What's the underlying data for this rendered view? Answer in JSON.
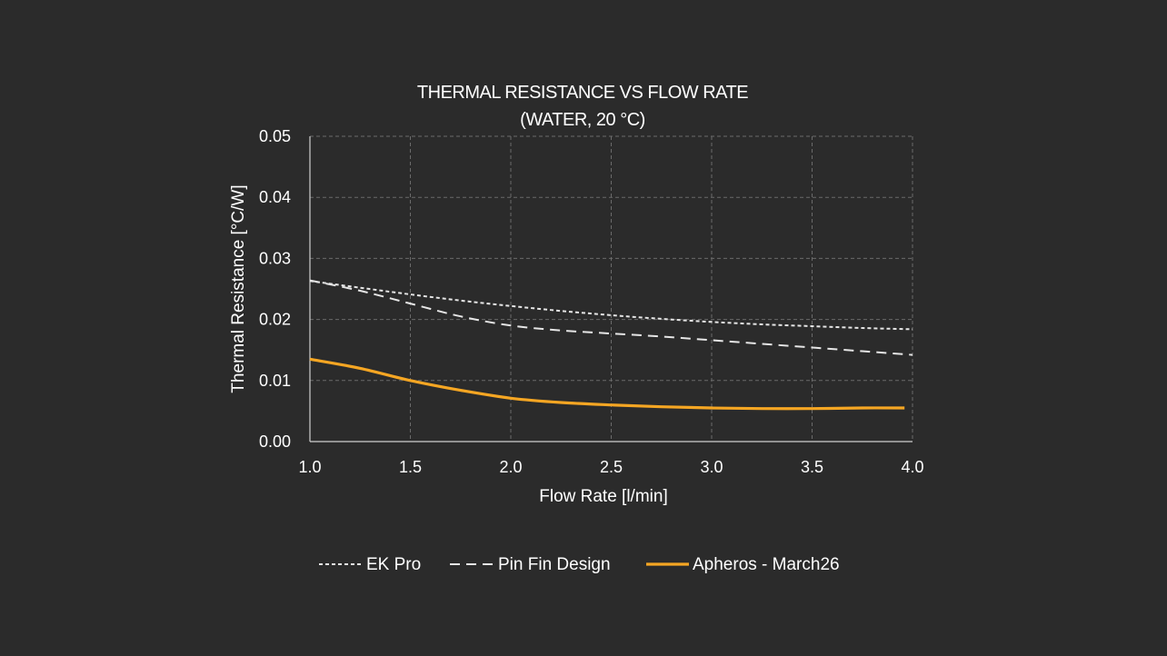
{
  "chart_data": {
    "type": "line",
    "title": "THERMAL RESISTANCE VS FLOW RATE",
    "subtitle": "(WATER, 20 °C)",
    "xlabel": "Flow Rate [l/min]",
    "ylabel": "Thermal Resistance [°C/W]",
    "xlim": [
      1.0,
      4.0
    ],
    "ylim": [
      0.0,
      0.05
    ],
    "x_ticks": [
      "1.0",
      "1.5",
      "2.0",
      "2.5",
      "3.0",
      "3.5",
      "4.0"
    ],
    "y_ticks": [
      "0.00",
      "0.01",
      "0.02",
      "0.03",
      "0.04",
      "0.05"
    ],
    "grid": true,
    "legend_position": "bottom",
    "series": [
      {
        "name": "EK Pro",
        "color": "#e6e6e6",
        "style": "dotted",
        "points": [
          [
            1.0,
            0.0263
          ],
          [
            1.25,
            0.0252
          ],
          [
            1.5,
            0.0241
          ],
          [
            1.75,
            0.0231
          ],
          [
            2.0,
            0.0222
          ],
          [
            2.25,
            0.0214
          ],
          [
            2.5,
            0.0207
          ],
          [
            2.75,
            0.0201
          ],
          [
            3.0,
            0.0196
          ],
          [
            3.25,
            0.0192
          ],
          [
            3.5,
            0.0189
          ],
          [
            3.75,
            0.0186
          ],
          [
            4.0,
            0.0184
          ]
        ]
      },
      {
        "name": "Pin Fin Design",
        "color": "#e6e6e6",
        "style": "dashed",
        "points": [
          [
            1.0,
            0.0264
          ],
          [
            1.25,
            0.0247
          ],
          [
            1.5,
            0.0226
          ],
          [
            1.75,
            0.0205
          ],
          [
            2.0,
            0.019
          ],
          [
            2.25,
            0.0182
          ],
          [
            2.5,
            0.0177
          ],
          [
            2.75,
            0.0172
          ],
          [
            3.0,
            0.0166
          ],
          [
            3.25,
            0.016
          ],
          [
            3.5,
            0.0154
          ],
          [
            3.75,
            0.0148
          ],
          [
            4.0,
            0.0142
          ]
        ]
      },
      {
        "name": "Apheros - March26",
        "color": "#f5a623",
        "style": "solid",
        "points": [
          [
            1.0,
            0.0135
          ],
          [
            1.25,
            0.012
          ],
          [
            1.5,
            0.01
          ],
          [
            1.75,
            0.0084
          ],
          [
            2.0,
            0.0071
          ],
          [
            2.25,
            0.0064
          ],
          [
            2.5,
            0.006
          ],
          [
            2.75,
            0.0057
          ],
          [
            3.0,
            0.0055
          ],
          [
            3.25,
            0.0054
          ],
          [
            3.5,
            0.0054
          ],
          [
            3.75,
            0.0055
          ],
          [
            3.96,
            0.0055
          ]
        ]
      }
    ]
  }
}
